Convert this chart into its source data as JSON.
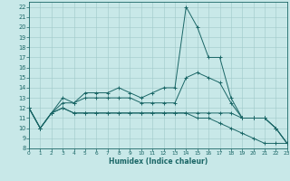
{
  "xlabel": "Humidex (Indice chaleur)",
  "bg_color": "#c8e8e8",
  "grid_color": "#a0c8c8",
  "line_color": "#1a6666",
  "xlim": [
    0,
    23
  ],
  "ylim": [
    8,
    22.5
  ],
  "xticks": [
    0,
    1,
    2,
    3,
    4,
    5,
    6,
    7,
    8,
    9,
    10,
    11,
    12,
    13,
    14,
    15,
    16,
    17,
    18,
    19,
    20,
    21,
    22,
    23
  ],
  "yticks": [
    8,
    9,
    10,
    11,
    12,
    13,
    14,
    15,
    16,
    17,
    18,
    19,
    20,
    21,
    22
  ],
  "lines": [
    {
      "x": [
        0,
        1,
        2,
        3,
        4,
        5,
        6,
        7,
        8,
        9,
        10,
        11,
        12,
        13,
        14,
        15,
        16,
        17,
        18,
        19,
        20,
        21,
        22,
        23
      ],
      "y": [
        12,
        10,
        11.5,
        13,
        12.5,
        13.5,
        13.5,
        13.5,
        14,
        13.5,
        13,
        13.5,
        14,
        14,
        22,
        20,
        17,
        17,
        13,
        11,
        11,
        11,
        10,
        8.5
      ]
    },
    {
      "x": [
        0,
        1,
        2,
        3,
        4,
        5,
        6,
        7,
        8,
        9,
        10,
        11,
        12,
        13,
        14,
        15,
        16,
        17,
        18,
        19,
        20,
        21,
        22,
        23
      ],
      "y": [
        12,
        10,
        11.5,
        12.5,
        12.5,
        13,
        13,
        13,
        13,
        13,
        12.5,
        12.5,
        12.5,
        12.5,
        15,
        15.5,
        15,
        14.5,
        12.5,
        11,
        11,
        11,
        10,
        8.5
      ]
    },
    {
      "x": [
        0,
        1,
        2,
        3,
        4,
        5,
        6,
        7,
        8,
        9,
        10,
        11,
        12,
        13,
        14,
        15,
        16,
        17,
        18,
        19,
        20,
        21,
        22,
        23
      ],
      "y": [
        12,
        10,
        11.5,
        12,
        11.5,
        11.5,
        11.5,
        11.5,
        11.5,
        11.5,
        11.5,
        11.5,
        11.5,
        11.5,
        11.5,
        11.5,
        11.5,
        11.5,
        11.5,
        11,
        11,
        11,
        10,
        8.5
      ]
    },
    {
      "x": [
        0,
        1,
        2,
        3,
        4,
        5,
        6,
        7,
        8,
        9,
        10,
        11,
        12,
        13,
        14,
        15,
        16,
        17,
        18,
        19,
        20,
        21,
        22,
        23
      ],
      "y": [
        12,
        10,
        11.5,
        12,
        11.5,
        11.5,
        11.5,
        11.5,
        11.5,
        11.5,
        11.5,
        11.5,
        11.5,
        11.5,
        11.5,
        11,
        11,
        10.5,
        10,
        9.5,
        9,
        8.5,
        8.5,
        8.5
      ]
    }
  ]
}
